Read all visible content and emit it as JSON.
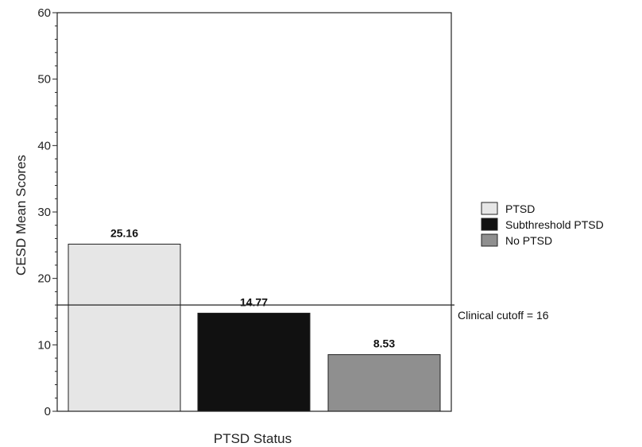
{
  "chart_data": {
    "type": "bar",
    "categories": [
      "PTSD",
      "Subthreshold PTSD",
      "No PTSD"
    ],
    "values": [
      25.16,
      14.77,
      8.53
    ],
    "data_labels": [
      "25.16",
      "14.77",
      "8.53"
    ],
    "colors": [
      "#e6e6e6",
      "#111111",
      "#8f8f8f"
    ],
    "xlabel": "PTSD Status",
    "ylabel": "CESD Mean Scores",
    "ylim": [
      0,
      60
    ],
    "y_ticks": [
      0,
      10,
      20,
      30,
      40,
      50,
      60
    ],
    "y_tick_labels": [
      "0",
      "10",
      "20",
      "30",
      "40",
      "50",
      "60"
    ],
    "reference_line": {
      "value": 16,
      "label": "Clinical cutoff = 16"
    },
    "legend": {
      "position": "right",
      "entries": [
        "PTSD",
        "Subthreshold PTSD",
        "No PTSD"
      ]
    },
    "grid": false
  }
}
